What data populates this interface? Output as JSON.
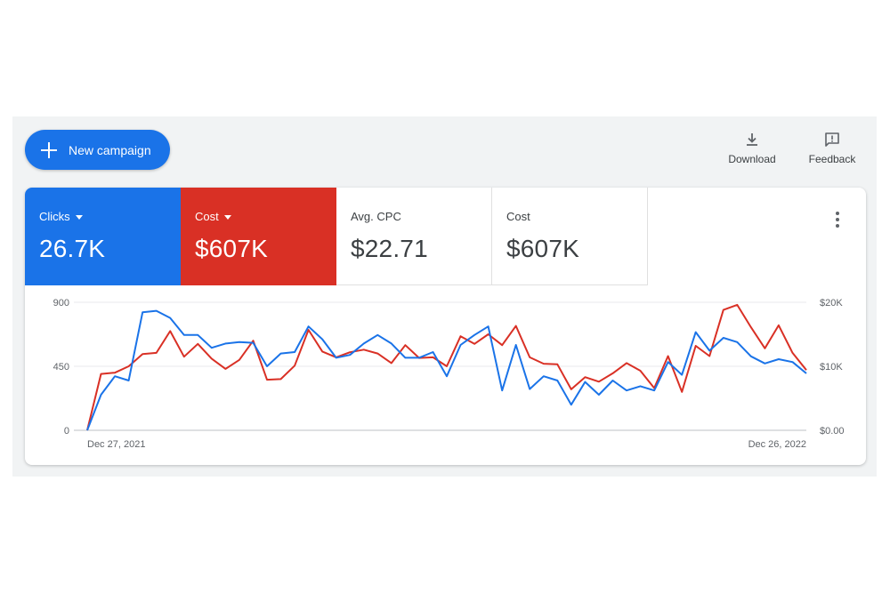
{
  "toolbar": {
    "new_campaign_label": "New campaign",
    "download_label": "Download",
    "feedback_label": "Feedback",
    "icons": {
      "new_campaign": "plus-icon",
      "download": "download-icon",
      "feedback": "feedback-icon",
      "more": "more-vert-icon"
    }
  },
  "metrics": [
    {
      "name": "Clicks",
      "value": "26.7K",
      "color": "#1a73e8",
      "selected": true
    },
    {
      "name": "Cost",
      "value": "$607K",
      "color": "#d93025",
      "selected": true
    },
    {
      "name": "Avg. CPC",
      "value": "$22.71",
      "selected": false
    },
    {
      "name": "Cost",
      "value": "$607K",
      "selected": false
    }
  ],
  "chart_data": {
    "type": "line",
    "x_start_label": "Dec 27, 2021",
    "x_end_label": "Dec 26, 2022",
    "y_left": {
      "ticks": [
        "0",
        "450",
        "900"
      ],
      "lim": [
        0,
        900
      ]
    },
    "y_right": {
      "ticks": [
        "$0.00",
        "$10K",
        "$20K"
      ],
      "lim": [
        0,
        20000
      ]
    },
    "grid": true,
    "series": [
      {
        "name": "Clicks",
        "axis": "left",
        "color": "#1a73e8",
        "values": [
          0,
          250,
          380,
          350,
          830,
          840,
          790,
          670,
          670,
          580,
          610,
          620,
          615,
          450,
          540,
          550,
          730,
          640,
          510,
          530,
          610,
          670,
          610,
          510,
          510,
          550,
          380,
          600,
          670,
          730,
          280,
          600,
          290,
          380,
          350,
          180,
          340,
          250,
          350,
          280,
          310,
          280,
          480,
          390,
          690,
          560,
          650,
          620,
          520,
          470,
          500,
          480,
          400
        ]
      },
      {
        "name": "Cost",
        "axis": "right",
        "color": "#d93025",
        "values": [
          0,
          8800,
          9000,
          10000,
          11900,
          12100,
          15500,
          11500,
          13500,
          11200,
          9600,
          11000,
          14000,
          7900,
          8000,
          10100,
          15700,
          12300,
          11400,
          12200,
          12600,
          12000,
          10500,
          13300,
          11300,
          11400,
          10000,
          14700,
          13500,
          15000,
          13300,
          16300,
          11400,
          10400,
          10300,
          6400,
          8300,
          7600,
          8900,
          10500,
          9300,
          6600,
          11600,
          6000,
          13200,
          11600,
          18800,
          19600,
          16100,
          12800,
          16400,
          12100,
          9400
        ]
      }
    ]
  }
}
